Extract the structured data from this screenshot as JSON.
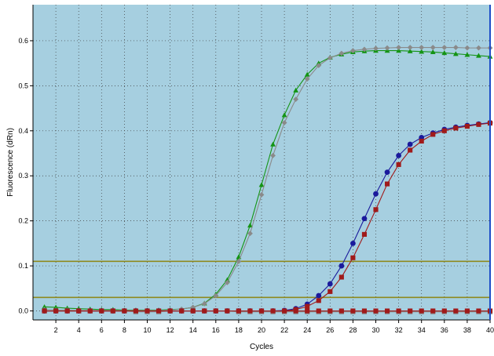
{
  "chart_data": {
    "type": "line",
    "title": "",
    "xlabel": "Cycles",
    "ylabel": "Fluorescence (dRn)",
    "xlim": [
      0,
      40
    ],
    "ylim": [
      -0.02,
      0.68
    ],
    "xticks": [
      2,
      4,
      6,
      8,
      10,
      12,
      14,
      16,
      18,
      20,
      22,
      24,
      26,
      28,
      30,
      32,
      34,
      36,
      38,
      40
    ],
    "yticks": [
      0,
      0.1,
      0.2,
      0.3,
      0.4,
      0.5,
      0.6
    ],
    "xtick_labels": [
      "2",
      "4",
      "6",
      "8",
      "10",
      "12",
      "14",
      "16",
      "18",
      "20",
      "22",
      "24",
      "26",
      "28",
      "30",
      "32",
      "34",
      "36",
      "38",
      "40"
    ],
    "ytick_labels": [
      "0.0",
      "0.1",
      "0.2",
      "0.3",
      "0.4",
      "0.5",
      "0.6"
    ],
    "grid": true,
    "plot_background": "#a6cfe0",
    "threshold_lines": [
      {
        "y": 0.11,
        "color": "#8f8a1f"
      },
      {
        "y": 0.03,
        "color": "#8f8a1f"
      }
    ],
    "series": [
      {
        "color": "#149414",
        "marker": "triangle",
        "x": [
          1,
          2,
          3,
          4,
          5,
          6,
          7,
          8,
          9,
          10,
          11,
          12,
          13,
          14,
          15,
          16,
          17,
          18,
          19,
          20,
          21,
          22,
          23,
          24,
          25,
          26,
          27,
          28,
          29,
          30,
          31,
          32,
          33,
          34,
          35,
          36,
          37,
          38,
          39,
          40
        ],
        "y": [
          0.009,
          0.008,
          0.006,
          0.005,
          0.004,
          0.003,
          0.003,
          0.002,
          0.002,
          0.002,
          0.002,
          0.003,
          0.004,
          0.008,
          0.017,
          0.037,
          0.069,
          0.12,
          0.19,
          0.28,
          0.37,
          0.435,
          0.49,
          0.525,
          0.55,
          0.563,
          0.57,
          0.575,
          0.577,
          0.578,
          0.578,
          0.578,
          0.577,
          0.576,
          0.575,
          0.573,
          0.571,
          0.569,
          0.567,
          0.565
        ]
      },
      {
        "color": "#8a8a8a",
        "marker": "diamond",
        "x": [
          1,
          2,
          3,
          4,
          5,
          6,
          7,
          8,
          9,
          10,
          11,
          12,
          13,
          14,
          15,
          16,
          17,
          18,
          19,
          20,
          21,
          22,
          23,
          24,
          25,
          26,
          27,
          28,
          29,
          30,
          31,
          32,
          33,
          34,
          35,
          36,
          37,
          38,
          39,
          40
        ],
        "y": [
          0.003,
          0.002,
          0.002,
          0.001,
          0.001,
          0.001,
          0.001,
          0.001,
          0.001,
          0.001,
          0.001,
          0.002,
          0.004,
          0.008,
          0.016,
          0.034,
          0.063,
          0.11,
          0.172,
          0.258,
          0.345,
          0.418,
          0.47,
          0.515,
          0.545,
          0.562,
          0.572,
          0.578,
          0.581,
          0.583,
          0.584,
          0.585,
          0.585,
          0.585,
          0.585,
          0.585,
          0.585,
          0.584,
          0.584,
          0.584
        ]
      },
      {
        "color": "#1a1a9c",
        "marker": "circle",
        "x": [
          1,
          2,
          3,
          4,
          5,
          6,
          7,
          8,
          9,
          10,
          11,
          12,
          13,
          14,
          15,
          16,
          17,
          18,
          19,
          20,
          21,
          22,
          23,
          24,
          25,
          26,
          27,
          28,
          29,
          30,
          31,
          32,
          33,
          34,
          35,
          36,
          37,
          38,
          39,
          40
        ],
        "y": [
          0.0,
          0.0,
          0.0,
          0.0,
          0.0,
          0.0,
          0.0,
          0.0,
          0.0,
          0.0,
          0.0,
          0.0,
          0.0,
          0.0,
          0.0,
          0.0,
          0.0,
          0.0,
          0.0,
          0.0,
          0.0,
          0.001,
          0.005,
          0.015,
          0.034,
          0.06,
          0.1,
          0.15,
          0.205,
          0.26,
          0.308,
          0.345,
          0.37,
          0.385,
          0.395,
          0.403,
          0.408,
          0.412,
          0.415,
          0.418
        ]
      },
      {
        "color": "#a01a1a",
        "marker": "square",
        "x": [
          1,
          2,
          3,
          4,
          5,
          6,
          7,
          8,
          9,
          10,
          11,
          12,
          13,
          14,
          15,
          16,
          17,
          18,
          19,
          20,
          21,
          22,
          23,
          24,
          25,
          26,
          27,
          28,
          29,
          30,
          31,
          32,
          33,
          34,
          35,
          36,
          37,
          38,
          39,
          40
        ],
        "y": [
          0.0,
          0.0,
          0.0,
          0.0,
          0.0,
          0.0,
          0.0,
          0.0,
          0.0,
          0.0,
          0.0,
          0.0,
          0.0,
          0.0,
          0.0,
          0.0,
          0.0,
          0.0,
          0.0,
          0.0,
          0.0,
          0.0,
          0.003,
          0.01,
          0.023,
          0.043,
          0.075,
          0.118,
          0.17,
          0.225,
          0.282,
          0.325,
          0.357,
          0.377,
          0.392,
          0.4,
          0.406,
          0.41,
          0.414,
          0.417
        ]
      },
      {
        "color": "#8a8a8a",
        "marker": "square",
        "x": [
          1,
          2,
          3,
          4,
          5,
          6,
          7,
          8,
          9,
          10,
          11,
          12,
          13,
          14,
          15,
          16,
          17,
          18,
          19,
          20,
          21,
          22,
          23,
          24,
          25,
          26,
          27,
          28,
          29,
          30,
          31,
          32,
          33,
          34,
          35,
          36,
          37,
          38,
          39,
          40
        ],
        "y": [
          0.0,
          0.0,
          0.0,
          0.0,
          0.0,
          0.0,
          0.0,
          0.0,
          -0.002,
          -0.002,
          -0.002,
          0.0,
          0.0,
          0.0,
          0.0,
          0.0,
          0.0,
          -0.002,
          -0.002,
          -0.002,
          -0.002,
          -0.002,
          -0.002,
          -0.002,
          -0.002,
          -0.002,
          -0.002,
          -0.002,
          -0.002,
          -0.002,
          -0.002,
          -0.002,
          -0.002,
          -0.002,
          -0.002,
          -0.002,
          -0.002,
          -0.002,
          -0.002,
          -0.002
        ]
      },
      {
        "color": "#a01a1a",
        "marker": "square",
        "x": [
          1,
          2,
          3,
          4,
          5,
          6,
          7,
          8,
          9,
          10,
          11,
          12,
          13,
          14,
          15,
          16,
          17,
          18,
          19,
          20,
          21,
          22,
          23,
          24,
          25,
          26,
          27,
          28,
          29,
          30,
          31,
          32,
          33,
          34,
          35,
          36,
          37,
          38,
          39,
          40
        ],
        "y": [
          0.0,
          0.0,
          0.0,
          0.0,
          0.0,
          0.0,
          0.0,
          0.0,
          0.0,
          0.0,
          0.0,
          0.0,
          0.0,
          0.0,
          0.0,
          0.0,
          0.0,
          0.0,
          0.0,
          0.0,
          0.0,
          0.0,
          0.0,
          0.0,
          0.0,
          0.0,
          0.0,
          0.0,
          0.0,
          0.0,
          0.0,
          0.0,
          0.0,
          0.0,
          0.0,
          0.0,
          0.0,
          0.0,
          0.0,
          0.0
        ]
      }
    ]
  }
}
